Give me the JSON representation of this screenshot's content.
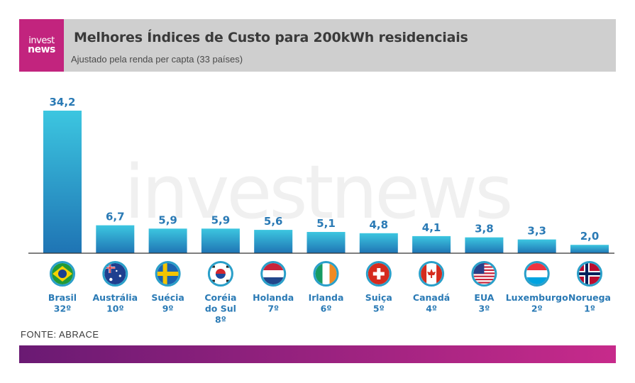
{
  "header": {
    "logo_line1": "invest",
    "logo_line2": "news",
    "title": "Melhores Índices de Custo para 200kWh residenciais",
    "subtitle": "Ajustado pela renda per capta (33 países)"
  },
  "watermark": "investnews",
  "source": "FONTE: ABRACE",
  "colors": {
    "accent": "#c2247e",
    "bar_top": "#3cc6e0",
    "bar_bottom": "#1f74b4",
    "label": "#2a7ab5",
    "flag_ring": "#2a9fc9",
    "footer_start": "#6a1a73",
    "footer_end": "#c72a8b"
  },
  "chart_data": {
    "type": "bar",
    "categories": [
      "Brasil",
      "Austrália",
      "Suécia",
      "Coréia do Sul",
      "Holanda",
      "Irlanda",
      "Suiça",
      "Canadá",
      "EUA",
      "Luxemburgo",
      "Noruega"
    ],
    "category_lines": [
      [
        "Brasil",
        "32º"
      ],
      [
        "Austrália",
        "10º"
      ],
      [
        "Suécia",
        "9º"
      ],
      [
        "Coréia",
        "do Sul",
        "8º"
      ],
      [
        "Holanda",
        "7º"
      ],
      [
        "Irlanda",
        "6º"
      ],
      [
        "Suiça",
        "5º"
      ],
      [
        "Canadá",
        "4º"
      ],
      [
        "EUA",
        "3º"
      ],
      [
        "Luxemburgo",
        "2º"
      ],
      [
        "Noruega",
        "1º"
      ]
    ],
    "ranks": [
      "32º",
      "10º",
      "9º",
      "8º",
      "7º",
      "6º",
      "5º",
      "4º",
      "3º",
      "2º",
      "1º"
    ],
    "values": [
      34.2,
      6.7,
      5.9,
      5.9,
      5.6,
      5.1,
      4.8,
      4.1,
      3.8,
      3.3,
      2.0
    ],
    "value_labels": [
      "34,2",
      "6,7",
      "5,9",
      "5,9",
      "5,6",
      "5,1",
      "4,8",
      "4,1",
      "3,8",
      "3,3",
      "2,0"
    ],
    "flags": [
      "brazil-flag-icon",
      "australia-flag-icon",
      "sweden-flag-icon",
      "south-korea-flag-icon",
      "netherlands-flag-icon",
      "ireland-flag-icon",
      "switzerland-flag-icon",
      "canada-flag-icon",
      "usa-flag-icon",
      "luxembourg-flag-icon",
      "norway-flag-icon"
    ],
    "ylim": [
      0,
      34.2
    ],
    "grid": false,
    "legend": "none",
    "title": "Melhores Índices de Custo para 200kWh residenciais",
    "subtitle": "Ajustado pela renda per capta (33 países)"
  }
}
